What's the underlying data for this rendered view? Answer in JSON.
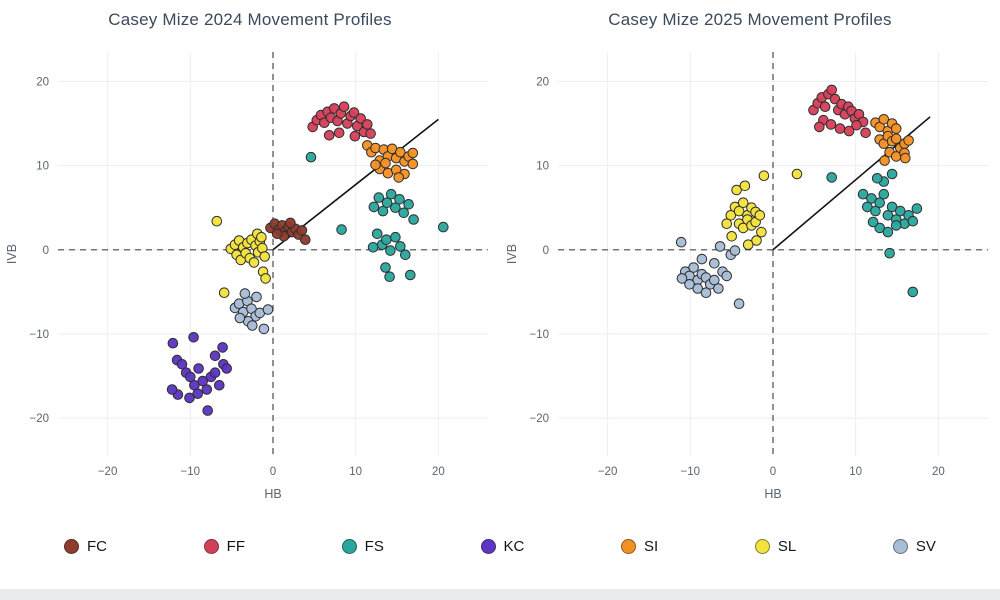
{
  "chart_data": [
    {
      "type": "scatter",
      "title": "Casey Mize 2024 Movement Profiles",
      "xlabel": "HB",
      "ylabel": "IVB",
      "xlim": [
        -26,
        26
      ],
      "ylim": [
        -24.5,
        23.5
      ],
      "xticks": [
        -20,
        -10,
        0,
        10,
        20
      ],
      "yticks": [
        -20,
        -10,
        0,
        10,
        20
      ],
      "grid": true,
      "zero_lines": "dashed",
      "legend_position": "bottom",
      "trend_line": {
        "x1": 0,
        "y1": 0,
        "x2": 20,
        "y2": 15.5
      },
      "series": [
        {
          "name": "FC",
          "color": "#8f3b2d",
          "points": [
            [
              -0.3,
              2.6
            ],
            [
              0.2,
              3.1
            ],
            [
              0.7,
              2.4
            ],
            [
              1.1,
              2.9
            ],
            [
              1.5,
              2.2
            ],
            [
              1.9,
              2.7
            ],
            [
              2.3,
              2.1
            ],
            [
              2.7,
              2.5
            ],
            [
              3.1,
              1.8
            ],
            [
              3.5,
              2.3
            ],
            [
              1.3,
              1.6
            ],
            [
              2.1,
              3.2
            ],
            [
              3.9,
              1.2
            ],
            [
              0.5,
              1.9
            ]
          ]
        },
        {
          "name": "FF",
          "color": "#d54059",
          "points": [
            [
              4.8,
              14.6
            ],
            [
              5.3,
              15.4
            ],
            [
              5.8,
              16.0
            ],
            [
              6.2,
              15.1
            ],
            [
              6.6,
              16.4
            ],
            [
              7.0,
              15.7
            ],
            [
              7.4,
              16.8
            ],
            [
              7.8,
              15.3
            ],
            [
              8.2,
              16.2
            ],
            [
              8.6,
              17.0
            ],
            [
              9.0,
              15.0
            ],
            [
              9.4,
              15.9
            ],
            [
              9.8,
              16.3
            ],
            [
              10.2,
              14.7
            ],
            [
              10.6,
              15.6
            ],
            [
              11.0,
              14.0
            ],
            [
              11.4,
              14.9
            ],
            [
              8.0,
              13.9
            ],
            [
              6.8,
              13.6
            ],
            [
              9.9,
              13.5
            ],
            [
              11.8,
              13.8
            ]
          ]
        },
        {
          "name": "FS",
          "color": "#2aa79d",
          "points": [
            [
              12.2,
              5.1
            ],
            [
              12.8,
              6.2
            ],
            [
              13.3,
              4.6
            ],
            [
              13.8,
              5.6
            ],
            [
              14.3,
              6.6
            ],
            [
              14.8,
              5.0
            ],
            [
              15.3,
              6.0
            ],
            [
              15.8,
              4.4
            ],
            [
              16.4,
              5.4
            ],
            [
              17.0,
              3.6
            ],
            [
              12.6,
              1.9
            ],
            [
              13.2,
              0.6
            ],
            [
              13.7,
              1.2
            ],
            [
              14.2,
              -0.1
            ],
            [
              14.8,
              1.5
            ],
            [
              15.4,
              0.4
            ],
            [
              16.0,
              -0.6
            ],
            [
              13.6,
              -2.1
            ],
            [
              14.1,
              -3.2
            ],
            [
              16.6,
              -3.0
            ],
            [
              12.1,
              0.3
            ],
            [
              4.6,
              11.0
            ],
            [
              8.3,
              2.4
            ],
            [
              20.6,
              2.7
            ]
          ]
        },
        {
          "name": "KC",
          "color": "#5d34c3",
          "points": [
            [
              -9.6,
              -10.4
            ],
            [
              -12.1,
              -11.1
            ],
            [
              -11.6,
              -13.1
            ],
            [
              -11.0,
              -13.6
            ],
            [
              -10.5,
              -14.6
            ],
            [
              -10.0,
              -15.1
            ],
            [
              -9.5,
              -16.1
            ],
            [
              -9.0,
              -14.1
            ],
            [
              -8.5,
              -15.6
            ],
            [
              -8.0,
              -16.6
            ],
            [
              -7.5,
              -15.1
            ],
            [
              -7.0,
              -14.6
            ],
            [
              -6.5,
              -16.1
            ],
            [
              -6.0,
              -13.6
            ],
            [
              -5.6,
              -14.1
            ],
            [
              -10.1,
              -17.6
            ],
            [
              -9.1,
              -17.1
            ],
            [
              -7.9,
              -19.1
            ],
            [
              -11.5,
              -17.2
            ],
            [
              -7.0,
              -12.6
            ],
            [
              -6.1,
              -11.6
            ],
            [
              -12.2,
              -16.6
            ]
          ]
        },
        {
          "name": "SI",
          "color": "#f59123",
          "points": [
            [
              11.4,
              12.4
            ],
            [
              11.9,
              11.6
            ],
            [
              12.4,
              12.1
            ],
            [
              12.9,
              10.6
            ],
            [
              13.4,
              11.9
            ],
            [
              13.9,
              11.1
            ],
            [
              14.4,
              12.0
            ],
            [
              14.9,
              10.9
            ],
            [
              15.4,
              11.6
            ],
            [
              15.9,
              10.5
            ],
            [
              16.4,
              11.1
            ],
            [
              16.9,
              11.5
            ],
            [
              12.9,
              9.6
            ],
            [
              13.9,
              9.1
            ],
            [
              14.9,
              9.5
            ],
            [
              15.9,
              9.0
            ],
            [
              12.4,
              10.1
            ],
            [
              16.9,
              10.2
            ],
            [
              13.6,
              10.3
            ],
            [
              15.2,
              8.6
            ]
          ]
        },
        {
          "name": "SL",
          "color": "#f2e33c",
          "points": [
            [
              -6.8,
              3.4
            ],
            [
              -5.1,
              0.1
            ],
            [
              -4.6,
              0.6
            ],
            [
              -4.1,
              1.1
            ],
            [
              -3.6,
              0.3
            ],
            [
              -3.1,
              0.8
            ],
            [
              -2.6,
              1.2
            ],
            [
              -2.1,
              0.5
            ],
            [
              -1.6,
              1.0
            ],
            [
              -4.4,
              -0.6
            ],
            [
              -3.9,
              -1.2
            ],
            [
              -3.3,
              -0.4
            ],
            [
              -2.8,
              -1.0
            ],
            [
              -2.3,
              -1.5
            ],
            [
              -1.8,
              -0.3
            ],
            [
              -1.3,
              0.2
            ],
            [
              -1.9,
              1.9
            ],
            [
              -1.4,
              1.5
            ],
            [
              -1.0,
              -0.8
            ],
            [
              -1.2,
              -2.6
            ],
            [
              -0.9,
              -3.4
            ],
            [
              -5.9,
              -5.1
            ]
          ]
        },
        {
          "name": "SV",
          "color": "#a8bdd6",
          "points": [
            [
              -4.6,
              -6.9
            ],
            [
              -4.1,
              -6.4
            ],
            [
              -3.6,
              -7.4
            ],
            [
              -3.1,
              -6.1
            ],
            [
              -2.6,
              -7.0
            ],
            [
              -2.1,
              -7.9
            ],
            [
              -1.6,
              -7.5
            ],
            [
              -1.1,
              -9.4
            ],
            [
              -3.0,
              -8.5
            ],
            [
              -2.0,
              -5.6
            ],
            [
              -4.0,
              -8.1
            ],
            [
              -0.6,
              -7.1
            ],
            [
              -2.5,
              -9.0
            ],
            [
              -3.4,
              -5.2
            ]
          ]
        }
      ]
    },
    {
      "type": "scatter",
      "title": "Casey Mize 2025 Movement Profiles",
      "xlabel": "HB",
      "ylabel": "IVB",
      "xlim": [
        -26,
        26
      ],
      "ylim": [
        -24.5,
        23.5
      ],
      "xticks": [
        -20,
        -10,
        0,
        10,
        20
      ],
      "yticks": [
        -20,
        -10,
        0,
        10,
        20
      ],
      "grid": true,
      "zero_lines": "dashed",
      "legend_position": "bottom",
      "trend_line": {
        "x1": 0,
        "y1": 0,
        "x2": 19,
        "y2": 15.8
      },
      "series": [
        {
          "name": "FF",
          "color": "#d54059",
          "points": [
            [
              4.9,
              16.6
            ],
            [
              5.4,
              17.4
            ],
            [
              5.9,
              18.1
            ],
            [
              6.3,
              17.0
            ],
            [
              6.7,
              18.5
            ],
            [
              7.1,
              19.0
            ],
            [
              7.5,
              17.9
            ],
            [
              7.9,
              16.6
            ],
            [
              8.3,
              17.3
            ],
            [
              8.7,
              16.1
            ],
            [
              9.1,
              17.0
            ],
            [
              9.5,
              16.5
            ],
            [
              9.9,
              15.6
            ],
            [
              10.4,
              16.1
            ],
            [
              10.9,
              15.2
            ],
            [
              6.1,
              15.4
            ],
            [
              7.0,
              14.9
            ],
            [
              8.1,
              14.4
            ],
            [
              9.2,
              14.1
            ],
            [
              10.1,
              14.8
            ],
            [
              11.2,
              13.9
            ],
            [
              5.6,
              14.6
            ]
          ]
        },
        {
          "name": "FS",
          "color": "#2aa79d",
          "points": [
            [
              10.9,
              6.6
            ],
            [
              11.4,
              5.1
            ],
            [
              11.9,
              6.1
            ],
            [
              12.4,
              4.6
            ],
            [
              12.9,
              5.6
            ],
            [
              13.4,
              6.6
            ],
            [
              13.9,
              4.1
            ],
            [
              14.4,
              5.1
            ],
            [
              14.9,
              3.6
            ],
            [
              15.4,
              4.6
            ],
            [
              15.9,
              3.1
            ],
            [
              16.4,
              4.1
            ],
            [
              16.9,
              3.4
            ],
            [
              12.9,
              2.6
            ],
            [
              13.9,
              2.1
            ],
            [
              14.9,
              2.9
            ],
            [
              17.4,
              4.9
            ],
            [
              12.1,
              3.3
            ],
            [
              13.4,
              8.1
            ],
            [
              14.4,
              9.0
            ],
            [
              12.6,
              8.5
            ],
            [
              7.1,
              8.6
            ],
            [
              16.9,
              -5.0
            ],
            [
              14.1,
              -0.4
            ]
          ]
        },
        {
          "name": "SI",
          "color": "#f59123",
          "points": [
            [
              12.4,
              15.1
            ],
            [
              12.9,
              14.6
            ],
            [
              13.4,
              15.5
            ],
            [
              13.9,
              14.1
            ],
            [
              14.4,
              15.0
            ],
            [
              14.9,
              14.4
            ],
            [
              12.9,
              13.1
            ],
            [
              13.4,
              12.6
            ],
            [
              13.9,
              13.5
            ],
            [
              14.4,
              12.9
            ],
            [
              14.9,
              13.2
            ],
            [
              15.4,
              12.1
            ],
            [
              15.9,
              12.6
            ],
            [
              14.1,
              11.6
            ],
            [
              14.9,
              11.1
            ],
            [
              15.9,
              11.5
            ],
            [
              13.5,
              10.6
            ],
            [
              16.4,
              13.0
            ],
            [
              16.0,
              10.9
            ]
          ]
        },
        {
          "name": "SL",
          "color": "#f2e33c",
          "points": [
            [
              -5.1,
              4.1
            ],
            [
              -4.6,
              5.1
            ],
            [
              -4.1,
              4.6
            ],
            [
              -3.6,
              5.6
            ],
            [
              -3.1,
              4.1
            ],
            [
              -2.6,
              5.0
            ],
            [
              -2.1,
              4.5
            ],
            [
              -4.1,
              3.1
            ],
            [
              -3.6,
              2.6
            ],
            [
              -3.1,
              3.6
            ],
            [
              -2.6,
              2.9
            ],
            [
              -2.1,
              3.3
            ],
            [
              -5.6,
              3.1
            ],
            [
              -1.6,
              4.1
            ],
            [
              -4.4,
              7.1
            ],
            [
              -3.4,
              7.6
            ],
            [
              -1.1,
              8.8
            ],
            [
              2.9,
              9.0
            ],
            [
              -5.0,
              1.6
            ],
            [
              -2.0,
              1.1
            ],
            [
              -3.0,
              0.6
            ],
            [
              -1.4,
              2.1
            ]
          ]
        },
        {
          "name": "SV",
          "color": "#a8bdd6",
          "points": [
            [
              -11.1,
              0.9
            ],
            [
              -10.6,
              -2.6
            ],
            [
              -10.1,
              -3.1
            ],
            [
              -9.6,
              -2.1
            ],
            [
              -9.1,
              -3.6
            ],
            [
              -8.6,
              -2.9
            ],
            [
              -8.1,
              -3.3
            ],
            [
              -7.6,
              -4.1
            ],
            [
              -7.1,
              -3.6
            ],
            [
              -6.6,
              -4.6
            ],
            [
              -9.1,
              -4.6
            ],
            [
              -8.1,
              -5.1
            ],
            [
              -10.1,
              -4.1
            ],
            [
              -6.1,
              -2.6
            ],
            [
              -5.6,
              -3.1
            ],
            [
              -5.1,
              -0.6
            ],
            [
              -4.6,
              -0.1
            ],
            [
              -7.1,
              -1.6
            ],
            [
              -8.6,
              -1.1
            ],
            [
              -4.1,
              -6.4
            ],
            [
              -11.0,
              -3.4
            ],
            [
              -6.4,
              0.4
            ]
          ]
        }
      ]
    }
  ],
  "legend": {
    "items": [
      {
        "label": "FC",
        "color": "#8f3b2d"
      },
      {
        "label": "FF",
        "color": "#d54059"
      },
      {
        "label": "FS",
        "color": "#2aa79d"
      },
      {
        "label": "KC",
        "color": "#5d34c3"
      },
      {
        "label": "SI",
        "color": "#f59123"
      },
      {
        "label": "SL",
        "color": "#f2e33c"
      },
      {
        "label": "SV",
        "color": "#a8bdd6"
      }
    ]
  },
  "style": {
    "title_color": "#3b4a5c",
    "tick_color": "#5a6470",
    "grid_color": "#ebeef3",
    "zero_line_color": "#4a4a4a",
    "trend_line_color": "#131313"
  }
}
